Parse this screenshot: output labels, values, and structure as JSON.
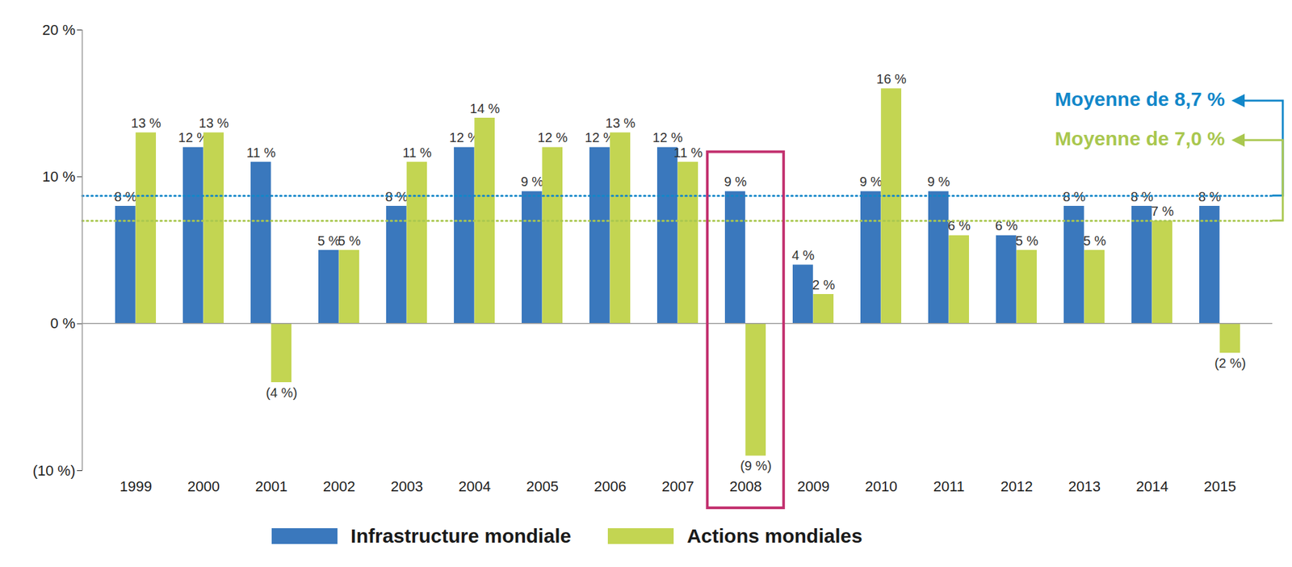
{
  "chart_data": {
    "type": "bar",
    "categories": [
      "1999",
      "2000",
      "2001",
      "2002",
      "2003",
      "2004",
      "2005",
      "2006",
      "2007",
      "2008",
      "2009",
      "2010",
      "2011",
      "2012",
      "2013",
      "2014",
      "2015"
    ],
    "series": [
      {
        "name": "Infrastructure mondiale",
        "color": "#3a78bd",
        "values": [
          8,
          12,
          11,
          5,
          8,
          12,
          9,
          12,
          12,
          9,
          4,
          9,
          9,
          6,
          8,
          8,
          8
        ],
        "value_labels": [
          "8 %",
          "12 %",
          "11 %",
          "5 %",
          "8 %",
          "12 %",
          "9 %",
          "12 %",
          "12 %",
          "9 %",
          "4 %",
          "9 %",
          "9 %",
          "6 %",
          "8 %",
          "8 %",
          "8 %"
        ]
      },
      {
        "name": "Actions mondiales",
        "color": "#c3d552",
        "values": [
          13,
          13,
          -4,
          5,
          11,
          14,
          12,
          13,
          11,
          -9,
          2,
          16,
          6,
          5,
          5,
          7,
          -2
        ],
        "value_labels": [
          "13 %",
          "13 %",
          "(4 %)",
          "5 %",
          "11 %",
          "14 %",
          "12 %",
          "13 %",
          "11 %",
          "(9 %)",
          "2 %",
          "16 %",
          "6 %",
          "5 %",
          "5 %",
          "7 %",
          "(2 %)"
        ]
      }
    ],
    "ylim": [
      -10,
      20
    ],
    "yticks": [
      {
        "value": -10,
        "label": "(10 %)"
      },
      {
        "value": 0,
        "label": "0 %"
      },
      {
        "value": 10,
        "label": "10 %"
      },
      {
        "value": 20,
        "label": "20 %"
      }
    ],
    "grid": false,
    "data_labels": true,
    "legend": "bottom",
    "annotations": [
      {
        "type": "line",
        "text": "Moyenne de 8,7 %",
        "value": 8.7,
        "color": "#1287c9",
        "line_style": "dotted"
      },
      {
        "type": "line",
        "text": "Moyenne de 7,0 %",
        "value": 7.0,
        "color": "#a9c74f",
        "line_style": "dotted"
      },
      {
        "type": "box",
        "category": "2008",
        "color": "#c2306e"
      }
    ]
  }
}
